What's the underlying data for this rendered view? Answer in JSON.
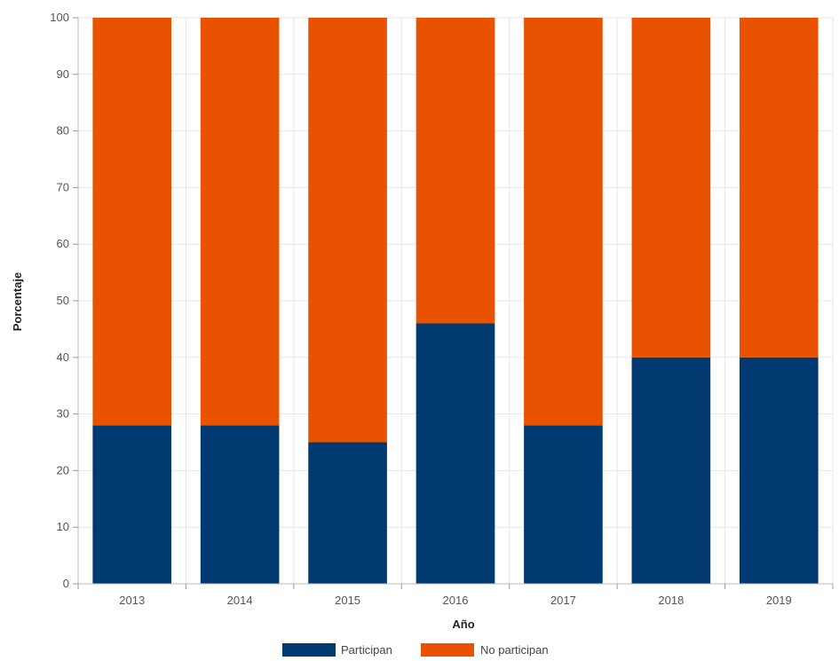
{
  "chart_data": {
    "type": "bar",
    "stacked": true,
    "title": "",
    "xlabel": "Año",
    "ylabel": "Porcentaje",
    "ylim": [
      0,
      100
    ],
    "yticks": [
      0,
      10,
      20,
      30,
      40,
      50,
      60,
      70,
      80,
      90,
      100
    ],
    "y_tick_labels": [
      "0",
      "10",
      "20",
      "30",
      "40",
      "50",
      "60",
      "70",
      "80",
      "90",
      "100"
    ],
    "grid": true,
    "legend_position": "bottom",
    "categories": [
      "2013",
      "2014",
      "2015",
      "2016",
      "2017",
      "2018",
      "2019"
    ],
    "series": [
      {
        "name": "Participan",
        "color": "#003a70",
        "values": [
          28,
          28,
          25,
          46,
          28,
          40,
          40
        ]
      },
      {
        "name": "No participan",
        "color": "#e85200",
        "values": [
          72,
          72,
          75,
          54,
          72,
          60,
          60
        ]
      }
    ]
  }
}
